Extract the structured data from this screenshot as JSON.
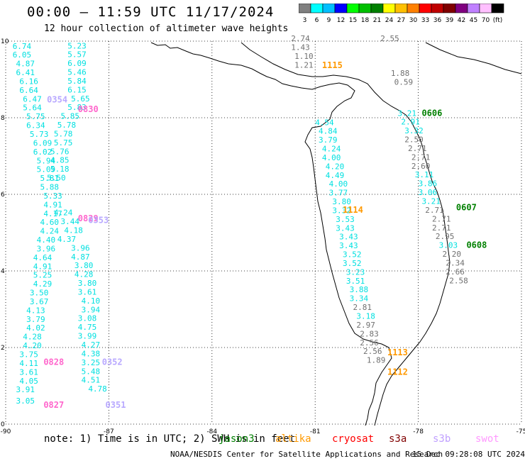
{
  "header": {
    "title": "00:00 – 11:59 UTC 11/17/2024",
    "subtitle": "12 hour collection of altimeter wave heights"
  },
  "legend": {
    "colors": [
      "#808080",
      "#00ffff",
      "#00bfff",
      "#0000ff",
      "#00ff00",
      "#00c000",
      "#008000",
      "#ffff00",
      "#ffc000",
      "#ff8000",
      "#ff0000",
      "#c00000",
      "#800000",
      "#800080",
      "#c080ff",
      "#ffc0ff",
      "#000000"
    ],
    "labels": [
      "3",
      "6",
      "9",
      "12",
      "15",
      "18",
      "21",
      "24",
      "27",
      "30",
      "33",
      "36",
      "39",
      "42",
      "45",
      "70",
      "(ft)"
    ]
  },
  "axes": {
    "x_ticks": [
      "-90",
      "-87",
      "-84",
      "-81",
      "-78",
      "-75"
    ],
    "y_ticks": [
      "0",
      "2",
      "4",
      "6",
      "8",
      "10"
    ]
  },
  "footer": {
    "note": "note: 1) Time is in UTC; 2) SWH is in feet",
    "satellites": [
      {
        "name": "jason3",
        "color": "#008000"
      },
      {
        "name": "altika",
        "color": "#ff9900"
      },
      {
        "name": "cryosat",
        "color": "#ff0000"
      },
      {
        "name": "s3a",
        "color": "#800000"
      },
      {
        "name": "s3b",
        "color": "#c0a0ff"
      },
      {
        "name": "swot",
        "color": "#ff99ff"
      }
    ],
    "credit": "NOAA/NESDIS Center for Satellite Applications and Research",
    "issued": "15 Dec 09:28:08 UTC 2024"
  },
  "map": {
    "colors": {
      "cyan": "#00e0e0",
      "gray": "#707070",
      "green": "#008000",
      "orange": "#ff9900",
      "pink": "#ff66cc",
      "lavender": "#b8a8ff"
    },
    "readings": [
      {
        "t": "6.74",
        "c": "cyan",
        "lon": -89.8,
        "lat": 9.8
      },
      {
        "t": "6.05",
        "c": "cyan",
        "lon": -89.8,
        "lat": 9.57
      },
      {
        "t": "4.87",
        "c": "cyan",
        "lon": -89.7,
        "lat": 9.34
      },
      {
        "t": "6.41",
        "c": "cyan",
        "lon": -89.7,
        "lat": 9.11
      },
      {
        "t": "6.16",
        "c": "cyan",
        "lon": -89.6,
        "lat": 8.88
      },
      {
        "t": "6.64",
        "c": "cyan",
        "lon": -89.6,
        "lat": 8.65
      },
      {
        "t": "6.47",
        "c": "cyan",
        "lon": -89.5,
        "lat": 8.42
      },
      {
        "t": "5.64",
        "c": "cyan",
        "lon": -89.5,
        "lat": 8.19
      },
      {
        "t": "5.75",
        "c": "cyan",
        "lon": -89.4,
        "lat": 7.96
      },
      {
        "t": "6.34",
        "c": "cyan",
        "lon": -89.4,
        "lat": 7.73
      },
      {
        "t": "5.73",
        "c": "cyan",
        "lon": -89.3,
        "lat": 7.5
      },
      {
        "t": "6.09",
        "c": "cyan",
        "lon": -89.2,
        "lat": 7.27
      },
      {
        "t": "6.02",
        "c": "cyan",
        "lon": -89.2,
        "lat": 7.04
      },
      {
        "t": "5.94",
        "c": "cyan",
        "lon": -89.1,
        "lat": 6.81
      },
      {
        "t": "5.09",
        "c": "cyan",
        "lon": -89.1,
        "lat": 6.58
      },
      {
        "t": "5.81",
        "c": "cyan",
        "lon": -89.0,
        "lat": 6.35
      },
      {
        "t": "5.88",
        "c": "cyan",
        "lon": -89.0,
        "lat": 6.12
      },
      {
        "t": "5.33",
        "c": "cyan",
        "lon": -88.9,
        "lat": 5.89
      },
      {
        "t": "4.91",
        "c": "cyan",
        "lon": -88.9,
        "lat": 5.66
      },
      {
        "t": "4.17",
        "c": "cyan",
        "lon": -88.9,
        "lat": 5.43
      },
      {
        "t": "4.60",
        "c": "cyan",
        "lon": -89.0,
        "lat": 5.2
      },
      {
        "t": "4.24",
        "c": "cyan",
        "lon": -89.0,
        "lat": 4.97
      },
      {
        "t": "4.40",
        "c": "cyan",
        "lon": -89.1,
        "lat": 4.74
      },
      {
        "t": "3.96",
        "c": "cyan",
        "lon": -89.1,
        "lat": 4.51
      },
      {
        "t": "4.64",
        "c": "cyan",
        "lon": -89.2,
        "lat": 4.28
      },
      {
        "t": "4.91",
        "c": "cyan",
        "lon": -89.2,
        "lat": 4.05
      },
      {
        "t": "5.25",
        "c": "cyan",
        "lon": -89.2,
        "lat": 3.82
      },
      {
        "t": "4.29",
        "c": "cyan",
        "lon": -89.2,
        "lat": 3.59
      },
      {
        "t": "3.50",
        "c": "cyan",
        "lon": -89.3,
        "lat": 3.36
      },
      {
        "t": "3.67",
        "c": "cyan",
        "lon": -89.3,
        "lat": 3.13
      },
      {
        "t": "4.13",
        "c": "cyan",
        "lon": -89.4,
        "lat": 2.9
      },
      {
        "t": "3.79",
        "c": "cyan",
        "lon": -89.4,
        "lat": 2.67
      },
      {
        "t": "4.02",
        "c": "cyan",
        "lon": -89.4,
        "lat": 2.44
      },
      {
        "t": "4.28",
        "c": "cyan",
        "lon": -89.5,
        "lat": 2.21
      },
      {
        "t": "4.20",
        "c": "cyan",
        "lon": -89.5,
        "lat": 1.98
      },
      {
        "t": "3.75",
        "c": "cyan",
        "lon": -89.6,
        "lat": 1.75
      },
      {
        "t": "4.11",
        "c": "cyan",
        "lon": -89.6,
        "lat": 1.52
      },
      {
        "t": "3.61",
        "c": "cyan",
        "lon": -89.6,
        "lat": 1.29
      },
      {
        "t": "4.05",
        "c": "cyan",
        "lon": -89.6,
        "lat": 1.06
      },
      {
        "t": "3.91",
        "c": "cyan",
        "lon": -89.7,
        "lat": 0.83
      },
      {
        "t": "3.05",
        "c": "cyan",
        "lon": -89.7,
        "lat": 0.54
      },
      {
        "t": "5.23",
        "c": "cyan",
        "lon": -88.2,
        "lat": 9.81
      },
      {
        "t": "5.57",
        "c": "cyan",
        "lon": -88.2,
        "lat": 9.58
      },
      {
        "t": "6.09",
        "c": "cyan",
        "lon": -88.2,
        "lat": 9.35
      },
      {
        "t": "5.46",
        "c": "cyan",
        "lon": -88.2,
        "lat": 9.12
      },
      {
        "t": "5.84",
        "c": "cyan",
        "lon": -88.2,
        "lat": 8.89
      },
      {
        "t": "6.15",
        "c": "cyan",
        "lon": -88.2,
        "lat": 8.66
      },
      {
        "t": "5.65",
        "c": "cyan",
        "lon": -88.1,
        "lat": 8.43
      },
      {
        "t": "5.83",
        "c": "cyan",
        "lon": -88.2,
        "lat": 8.2
      },
      {
        "t": "5.85",
        "c": "cyan",
        "lon": -88.4,
        "lat": 7.97
      },
      {
        "t": "5.78",
        "c": "cyan",
        "lon": -88.5,
        "lat": 7.74
      },
      {
        "t": "5.78",
        "c": "cyan",
        "lon": -88.6,
        "lat": 7.51
      },
      {
        "t": "5.75",
        "c": "cyan",
        "lon": -88.6,
        "lat": 7.28
      },
      {
        "t": "5.76",
        "c": "cyan",
        "lon": -88.7,
        "lat": 7.05
      },
      {
        "t": "4.85",
        "c": "cyan",
        "lon": -88.7,
        "lat": 6.82
      },
      {
        "t": "5.18",
        "c": "cyan",
        "lon": -88.7,
        "lat": 6.59
      },
      {
        "t": "5.50",
        "c": "cyan",
        "lon": -88.8,
        "lat": 6.36
      },
      {
        "t": "4.24",
        "c": "cyan",
        "lon": -88.6,
        "lat": 5.45
      },
      {
        "t": "3.44",
        "c": "cyan",
        "lon": -88.4,
        "lat": 5.22
      },
      {
        "t": "4.18",
        "c": "cyan",
        "lon": -88.3,
        "lat": 4.99
      },
      {
        "t": "4.37",
        "c": "cyan",
        "lon": -88.5,
        "lat": 4.76
      },
      {
        "t": "3.96",
        "c": "cyan",
        "lon": -88.1,
        "lat": 4.53
      },
      {
        "t": "4.87",
        "c": "cyan",
        "lon": -88.1,
        "lat": 4.3
      },
      {
        "t": "3.80",
        "c": "cyan",
        "lon": -88.0,
        "lat": 4.07
      },
      {
        "t": "4.28",
        "c": "cyan",
        "lon": -88.0,
        "lat": 3.84
      },
      {
        "t": "3.80",
        "c": "cyan",
        "lon": -87.9,
        "lat": 3.61
      },
      {
        "t": "3.61",
        "c": "cyan",
        "lon": -87.9,
        "lat": 3.38
      },
      {
        "t": "4.10",
        "c": "cyan",
        "lon": -87.8,
        "lat": 3.15
      },
      {
        "t": "3.94",
        "c": "cyan",
        "lon": -87.8,
        "lat": 2.92
      },
      {
        "t": "3.08",
        "c": "cyan",
        "lon": -87.9,
        "lat": 2.69
      },
      {
        "t": "4.75",
        "c": "cyan",
        "lon": -87.9,
        "lat": 2.46
      },
      {
        "t": "3.99",
        "c": "cyan",
        "lon": -87.9,
        "lat": 2.23
      },
      {
        "t": "4.27",
        "c": "cyan",
        "lon": -87.8,
        "lat": 2.0
      },
      {
        "t": "4.38",
        "c": "cyan",
        "lon": -87.8,
        "lat": 1.77
      },
      {
        "t": "3.25",
        "c": "cyan",
        "lon": -87.8,
        "lat": 1.54
      },
      {
        "t": "5.48",
        "c": "cyan",
        "lon": -87.8,
        "lat": 1.31
      },
      {
        "t": "4.51",
        "c": "cyan",
        "lon": -87.8,
        "lat": 1.08
      },
      {
        "t": "4.78",
        "c": "cyan",
        "lon": -87.6,
        "lat": 0.85
      },
      {
        "t": "4.54",
        "c": "cyan",
        "lon": -81.0,
        "lat": 7.81
      },
      {
        "t": "4.84",
        "c": "cyan",
        "lon": -80.9,
        "lat": 7.58
      },
      {
        "t": "3.79",
        "c": "cyan",
        "lon": -80.9,
        "lat": 7.35
      },
      {
        "t": "4.24",
        "c": "cyan",
        "lon": -80.8,
        "lat": 7.12
      },
      {
        "t": "4.00",
        "c": "cyan",
        "lon": -80.8,
        "lat": 6.89
      },
      {
        "t": "4.20",
        "c": "cyan",
        "lon": -80.7,
        "lat": 6.66
      },
      {
        "t": "4.49",
        "c": "cyan",
        "lon": -80.7,
        "lat": 6.43
      },
      {
        "t": "4.00",
        "c": "cyan",
        "lon": -80.6,
        "lat": 6.2
      },
      {
        "t": "3.77",
        "c": "cyan",
        "lon": -80.6,
        "lat": 5.97
      },
      {
        "t": "3.80",
        "c": "cyan",
        "lon": -80.5,
        "lat": 5.74
      },
      {
        "t": "3.32",
        "c": "cyan",
        "lon": -80.5,
        "lat": 5.51
      },
      {
        "t": "3.53",
        "c": "cyan",
        "lon": -80.4,
        "lat": 5.28
      },
      {
        "t": "3.43",
        "c": "cyan",
        "lon": -80.4,
        "lat": 5.05
      },
      {
        "t": "3.43",
        "c": "cyan",
        "lon": -80.3,
        "lat": 4.82
      },
      {
        "t": "3.43",
        "c": "cyan",
        "lon": -80.3,
        "lat": 4.59
      },
      {
        "t": "3.52",
        "c": "cyan",
        "lon": -80.2,
        "lat": 4.36
      },
      {
        "t": "3.52",
        "c": "cyan",
        "lon": -80.2,
        "lat": 4.13
      },
      {
        "t": "3.23",
        "c": "cyan",
        "lon": -80.1,
        "lat": 3.9
      },
      {
        "t": "3.51",
        "c": "cyan",
        "lon": -80.1,
        "lat": 3.67
      },
      {
        "t": "3.88",
        "c": "cyan",
        "lon": -80.0,
        "lat": 3.44
      },
      {
        "t": "3.34",
        "c": "cyan",
        "lon": -80.0,
        "lat": 3.21
      },
      {
        "t": "2.81",
        "c": "gray",
        "lon": -79.9,
        "lat": 2.98
      },
      {
        "t": "3.18",
        "c": "cyan",
        "lon": -79.8,
        "lat": 2.75
      },
      {
        "t": "2.97",
        "c": "gray",
        "lon": -79.8,
        "lat": 2.52
      },
      {
        "t": "2.83",
        "c": "gray",
        "lon": -79.7,
        "lat": 2.29
      },
      {
        "t": "2.56",
        "c": "gray",
        "lon": -79.7,
        "lat": 2.06
      },
      {
        "t": "2.56",
        "c": "gray",
        "lon": -79.6,
        "lat": 1.83
      },
      {
        "t": "1.89",
        "c": "gray",
        "lon": -79.5,
        "lat": 1.6
      },
      {
        "t": "2.74",
        "c": "gray",
        "lon": -81.7,
        "lat": 10.0
      },
      {
        "t": "1.43",
        "c": "gray",
        "lon": -81.7,
        "lat": 9.77
      },
      {
        "t": "1.10",
        "c": "gray",
        "lon": -81.6,
        "lat": 9.54
      },
      {
        "t": "1.21",
        "c": "gray",
        "lon": -81.6,
        "lat": 9.31
      },
      {
        "t": "2.55",
        "c": "gray",
        "lon": -79.1,
        "lat": 10.0
      },
      {
        "t": "1.88",
        "c": "gray",
        "lon": -78.8,
        "lat": 9.09
      },
      {
        "t": "0.59",
        "c": "gray",
        "lon": -78.7,
        "lat": 8.86
      },
      {
        "t": "3.21",
        "c": "cyan",
        "lon": -78.6,
        "lat": 8.05
      },
      {
        "t": "2.91",
        "c": "cyan",
        "lon": -78.5,
        "lat": 7.82
      },
      {
        "t": "3.32",
        "c": "cyan",
        "lon": -78.4,
        "lat": 7.59
      },
      {
        "t": "2.50",
        "c": "gray",
        "lon": -78.4,
        "lat": 7.36
      },
      {
        "t": "2.71",
        "c": "gray",
        "lon": -78.3,
        "lat": 7.13
      },
      {
        "t": "2.71",
        "c": "gray",
        "lon": -78.2,
        "lat": 6.9
      },
      {
        "t": "2.60",
        "c": "gray",
        "lon": -78.2,
        "lat": 6.67
      },
      {
        "t": "3.11",
        "c": "cyan",
        "lon": -78.1,
        "lat": 6.44
      },
      {
        "t": "3.86",
        "c": "cyan",
        "lon": -78.0,
        "lat": 6.21
      },
      {
        "t": "3.06",
        "c": "cyan",
        "lon": -78.0,
        "lat": 5.98
      },
      {
        "t": "3.21",
        "c": "cyan",
        "lon": -77.9,
        "lat": 5.75
      },
      {
        "t": "2.71",
        "c": "gray",
        "lon": -77.8,
        "lat": 5.52
      },
      {
        "t": "2.71",
        "c": "gray",
        "lon": -77.6,
        "lat": 5.29
      },
      {
        "t": "2.71",
        "c": "gray",
        "lon": -77.6,
        "lat": 5.06
      },
      {
        "t": "2.95",
        "c": "gray",
        "lon": -77.5,
        "lat": 4.83
      },
      {
        "t": "3.03",
        "c": "cyan",
        "lon": -77.4,
        "lat": 4.6
      },
      {
        "t": "2.20",
        "c": "gray",
        "lon": -77.3,
        "lat": 4.37
      },
      {
        "t": "2.34",
        "c": "gray",
        "lon": -77.2,
        "lat": 4.14
      },
      {
        "t": "2.66",
        "c": "gray",
        "lon": -77.2,
        "lat": 3.91
      },
      {
        "t": "2.58",
        "c": "gray",
        "lon": -77.1,
        "lat": 3.68
      }
    ],
    "passes": [
      {
        "t": "0830",
        "c": "pink",
        "lon": -87.9,
        "lat": 8.15
      },
      {
        "t": "0354",
        "c": "lavender",
        "lon": -88.8,
        "lat": 8.4
      },
      {
        "t": "0829",
        "c": "pink",
        "lon": -87.9,
        "lat": 5.3
      },
      {
        "t": "0353",
        "c": "lavender",
        "lon": -87.6,
        "lat": 5.25
      },
      {
        "t": "0828",
        "c": "pink",
        "lon": -88.9,
        "lat": 1.55
      },
      {
        "t": "0352",
        "c": "lavender",
        "lon": -87.2,
        "lat": 1.55
      },
      {
        "t": "0827",
        "c": "pink",
        "lon": -88.9,
        "lat": 0.43
      },
      {
        "t": "0351",
        "c": "lavender",
        "lon": -87.1,
        "lat": 0.43
      },
      {
        "t": "1115",
        "c": "orange",
        "lon": -80.8,
        "lat": 9.3
      },
      {
        "t": "0606",
        "c": "green",
        "lon": -77.9,
        "lat": 8.05
      },
      {
        "t": "1114",
        "c": "orange",
        "lon": -80.2,
        "lat": 5.52
      },
      {
        "t": "0607",
        "c": "green",
        "lon": -76.9,
        "lat": 5.58
      },
      {
        "t": "0608",
        "c": "green",
        "lon": -76.6,
        "lat": 4.6
      },
      {
        "t": "1113",
        "c": "orange",
        "lon": -78.9,
        "lat": 1.8
      },
      {
        "t": "1112",
        "c": "orange",
        "lon": -78.9,
        "lat": 1.29
      }
    ]
  }
}
